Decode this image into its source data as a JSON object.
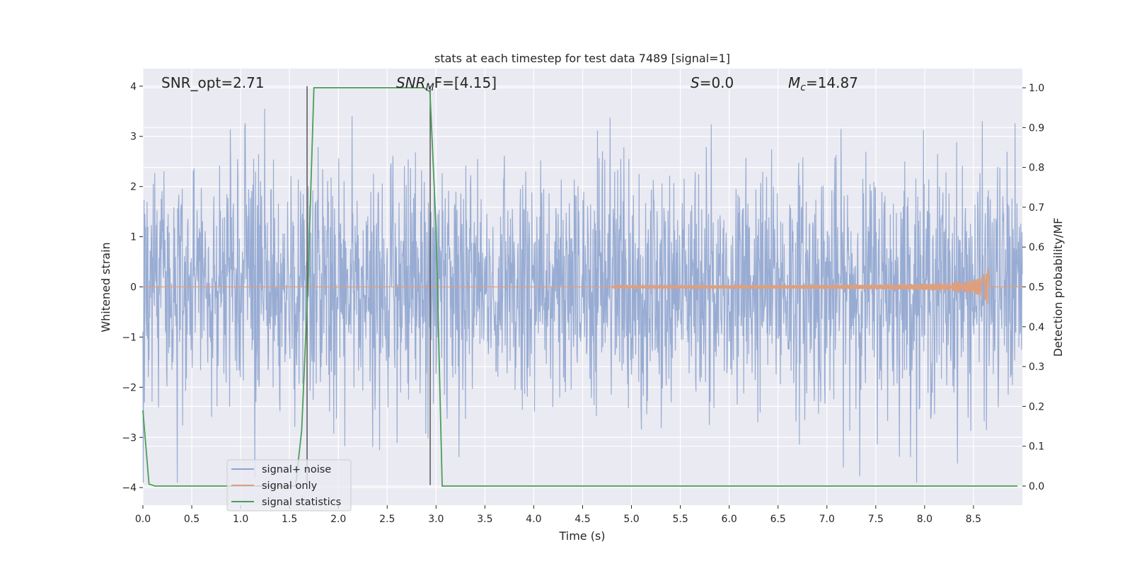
{
  "chart_data": {
    "type": "line",
    "title": "stats at each timestep for test data 7489 [signal=1]",
    "xlabel": "Time (s)",
    "ylabel": "Whitened strain",
    "y2label": "Detection probability/MF",
    "xlim": [
      0.0,
      9.0
    ],
    "ylim": [
      -4.35,
      4.35
    ],
    "y2lim": [
      -0.048,
      1.048
    ],
    "x_ticks": [
      "0.0",
      "0.5",
      "1.0",
      "1.5",
      "2.0",
      "2.5",
      "3.0",
      "3.5",
      "4.0",
      "4.5",
      "5.0",
      "5.5",
      "6.0",
      "6.5",
      "7.0",
      "7.5",
      "8.0",
      "8.5"
    ],
    "y_ticks": [
      "4",
      "3",
      "2",
      "1",
      "0",
      "−1",
      "−2",
      "−3",
      "−4"
    ],
    "y2_ticks": [
      "1.0",
      "0.9",
      "0.8",
      "0.7",
      "0.6",
      "0.5",
      "0.4",
      "0.3",
      "0.2",
      "0.1",
      "0.0"
    ],
    "grid": true,
    "legend_position": "lower-left",
    "annotations": {
      "snr_opt": "SNR_opt=2.71",
      "snr_mf_base": "SNR",
      "snr_mf_sub": "M",
      "snr_mf_tail": "F=[4.15]",
      "s_var": "S",
      "s_val": "=0.0",
      "mc_base": "M",
      "mc_sub": "c",
      "mc_val": "=14.87"
    },
    "vlines": [
      1.68,
      2.94
    ],
    "series": [
      {
        "name": "signal+ noise",
        "color": "#8fa5cf",
        "kind": "noise",
        "sample_rate": 256,
        "typical_amplitude": 1.6,
        "range": [
          -3.9,
          3.55
        ]
      },
      {
        "name": "signal only",
        "color": "#dd9f7e",
        "kind": "chirp",
        "t_start": 4.8,
        "t_merger": 8.65,
        "peak_amplitude": 0.45
      },
      {
        "name": "signal statistics",
        "color": "#4c9d59",
        "axis": "right",
        "x": [
          0.0,
          0.0625,
          0.125,
          0.1875,
          1.5625,
          1.625,
          1.6875,
          1.75,
          1.8125,
          2.875,
          2.9375,
          3.0,
          3.0625,
          3.125,
          8.95
        ],
        "values": [
          0.19,
          0.005,
          0.0,
          0.0,
          0.0,
          0.14,
          0.5,
          1.0,
          1.0,
          1.0,
          0.99,
          0.65,
          0.0,
          0.0,
          0.0
        ]
      }
    ]
  }
}
